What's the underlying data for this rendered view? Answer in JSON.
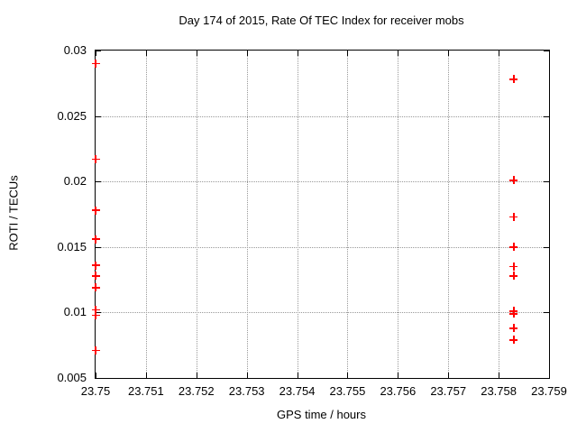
{
  "chart_data": {
    "type": "scatter",
    "title": "Day 174 of 2015, Rate Of TEC Index for receiver mobs",
    "xlabel": "GPS time / hours",
    "ylabel": "ROTI / TECUs",
    "xlim": [
      23.75,
      23.759
    ],
    "ylim": [
      0.005,
      0.03
    ],
    "grid": true,
    "legend": "none",
    "marker": {
      "shape": "plus",
      "color": "#ff0000",
      "size": 9
    },
    "x_ticks": [
      {
        "value": 23.75,
        "label": "23.75"
      },
      {
        "value": 23.751,
        "label": "23.751"
      },
      {
        "value": 23.752,
        "label": "23.752"
      },
      {
        "value": 23.753,
        "label": "23.753"
      },
      {
        "value": 23.754,
        "label": "23.754"
      },
      {
        "value": 23.755,
        "label": "23.755"
      },
      {
        "value": 23.756,
        "label": "23.756"
      },
      {
        "value": 23.757,
        "label": "23.757"
      },
      {
        "value": 23.758,
        "label": "23.758"
      },
      {
        "value": 23.759,
        "label": "23.759"
      }
    ],
    "y_ticks": [
      {
        "value": 0.005,
        "label": "0.005"
      },
      {
        "value": 0.01,
        "label": "0.01"
      },
      {
        "value": 0.015,
        "label": "0.015"
      },
      {
        "value": 0.02,
        "label": "0.02"
      },
      {
        "value": 0.025,
        "label": "0.025"
      },
      {
        "value": 0.03,
        "label": "0.03"
      }
    ],
    "series": [
      {
        "name": "roti-points",
        "points": [
          [
            23.75,
            0.029
          ],
          [
            23.75,
            0.0217
          ],
          [
            23.75,
            0.0178
          ],
          [
            23.75,
            0.0156
          ],
          [
            23.75,
            0.0136
          ],
          [
            23.75,
            0.0128
          ],
          [
            23.75,
            0.0119
          ],
          [
            23.75,
            0.0102
          ],
          [
            23.75,
            0.0098
          ],
          [
            23.75,
            0.0071
          ],
          [
            23.7583,
            0.0278
          ],
          [
            23.7583,
            0.0201
          ],
          [
            23.7583,
            0.0173
          ],
          [
            23.7583,
            0.015
          ],
          [
            23.7583,
            0.0135
          ],
          [
            23.7583,
            0.0128
          ],
          [
            23.7583,
            0.0101
          ],
          [
            23.7583,
            0.0099
          ],
          [
            23.7583,
            0.0088
          ],
          [
            23.7583,
            0.0079
          ]
        ]
      }
    ]
  }
}
